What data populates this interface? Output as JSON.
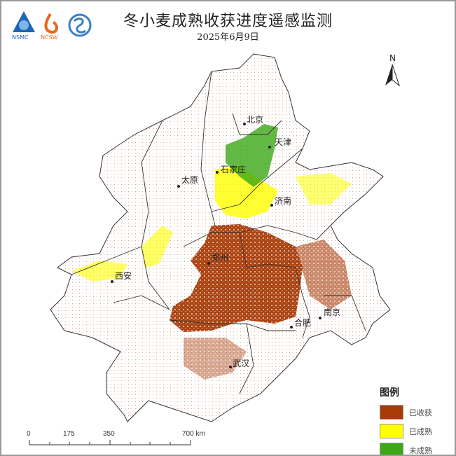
{
  "header": {
    "title": "冬小麦成熟收获进度遥感监测",
    "date": "2025年6月9日",
    "logos": [
      "NSMC",
      "NCSW"
    ]
  },
  "north_arrow": {
    "label": "N"
  },
  "cities": [
    {
      "name": "北京"
    },
    {
      "name": "天津"
    },
    {
      "name": "石家庄"
    },
    {
      "name": "太原"
    },
    {
      "name": "济南"
    },
    {
      "name": "郑州"
    },
    {
      "name": "西安"
    },
    {
      "name": "南京"
    },
    {
      "name": "合肥"
    },
    {
      "name": "武汉"
    }
  ],
  "legend": {
    "title": "图例",
    "items": [
      {
        "label": "已收获",
        "color": "#a83b08"
      },
      {
        "label": "已成熟",
        "color": "#ffff00"
      },
      {
        "label": "未成熟",
        "color": "#3ca816"
      }
    ]
  },
  "scale_bar": {
    "ticks": [
      "0",
      "175",
      "350",
      "700 km"
    ]
  }
}
